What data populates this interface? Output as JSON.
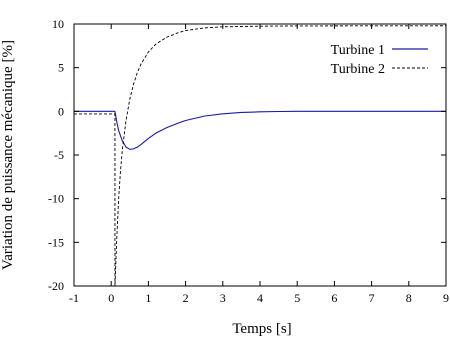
{
  "chart_data": {
    "type": "line",
    "title": "",
    "xlabel": "Temps [s]",
    "ylabel": "Variation de puissance mécanique [%]",
    "xlim": [
      -1,
      9
    ],
    "ylim": [
      -20,
      10
    ],
    "x_ticks": [
      -1,
      0,
      1,
      2,
      3,
      4,
      5,
      6,
      7,
      8,
      9
    ],
    "y_ticks": [
      -20,
      -15,
      -10,
      -5,
      0,
      5,
      10
    ],
    "grid": false,
    "legend_position": "top-right",
    "series": [
      {
        "name": "Turbine 1",
        "style": "solid",
        "color": "#1a1aa6",
        "points": [
          [
            -1,
            0
          ],
          [
            0.05,
            0
          ],
          [
            0.1,
            0
          ],
          [
            0.15,
            -1.2
          ],
          [
            0.2,
            -2.2
          ],
          [
            0.3,
            -3.4
          ],
          [
            0.4,
            -4.1
          ],
          [
            0.5,
            -4.35
          ],
          [
            0.6,
            -4.3
          ],
          [
            0.7,
            -4.1
          ],
          [
            0.8,
            -3.8
          ],
          [
            1.0,
            -3.1
          ],
          [
            1.2,
            -2.5
          ],
          [
            1.5,
            -1.85
          ],
          [
            1.8,
            -1.35
          ],
          [
            2.0,
            -1.05
          ],
          [
            2.5,
            -0.55
          ],
          [
            3.0,
            -0.28
          ],
          [
            3.5,
            -0.13
          ],
          [
            4.0,
            -0.06
          ],
          [
            4.5,
            -0.02
          ],
          [
            5.0,
            0
          ],
          [
            6.0,
            0
          ],
          [
            7.0,
            0
          ],
          [
            8.0,
            0
          ],
          [
            9.0,
            0
          ]
        ]
      },
      {
        "name": "Turbine 2",
        "style": "dashed",
        "color": "#000000",
        "points": [
          [
            -1,
            -0.3
          ],
          [
            0.05,
            -0.3
          ],
          [
            0.1,
            -0.3
          ],
          [
            0.101,
            -20
          ],
          [
            0.15,
            -14.5
          ],
          [
            0.2,
            -10
          ],
          [
            0.25,
            -6.8
          ],
          [
            0.3,
            -4.4
          ],
          [
            0.4,
            -1.0
          ],
          [
            0.5,
            1.4
          ],
          [
            0.6,
            3.1
          ],
          [
            0.7,
            4.4
          ],
          [
            0.8,
            5.4
          ],
          [
            1.0,
            6.8
          ],
          [
            1.2,
            7.7
          ],
          [
            1.5,
            8.5
          ],
          [
            1.8,
            9.0
          ],
          [
            2.0,
            9.25
          ],
          [
            2.5,
            9.55
          ],
          [
            3.0,
            9.68
          ],
          [
            4.0,
            9.75
          ],
          [
            5.0,
            9.78
          ],
          [
            9.0,
            9.8
          ]
        ]
      }
    ],
    "colors": {
      "axis": "#000000",
      "turbine1": "#1a1aa6",
      "turbine2": "#000000"
    }
  }
}
